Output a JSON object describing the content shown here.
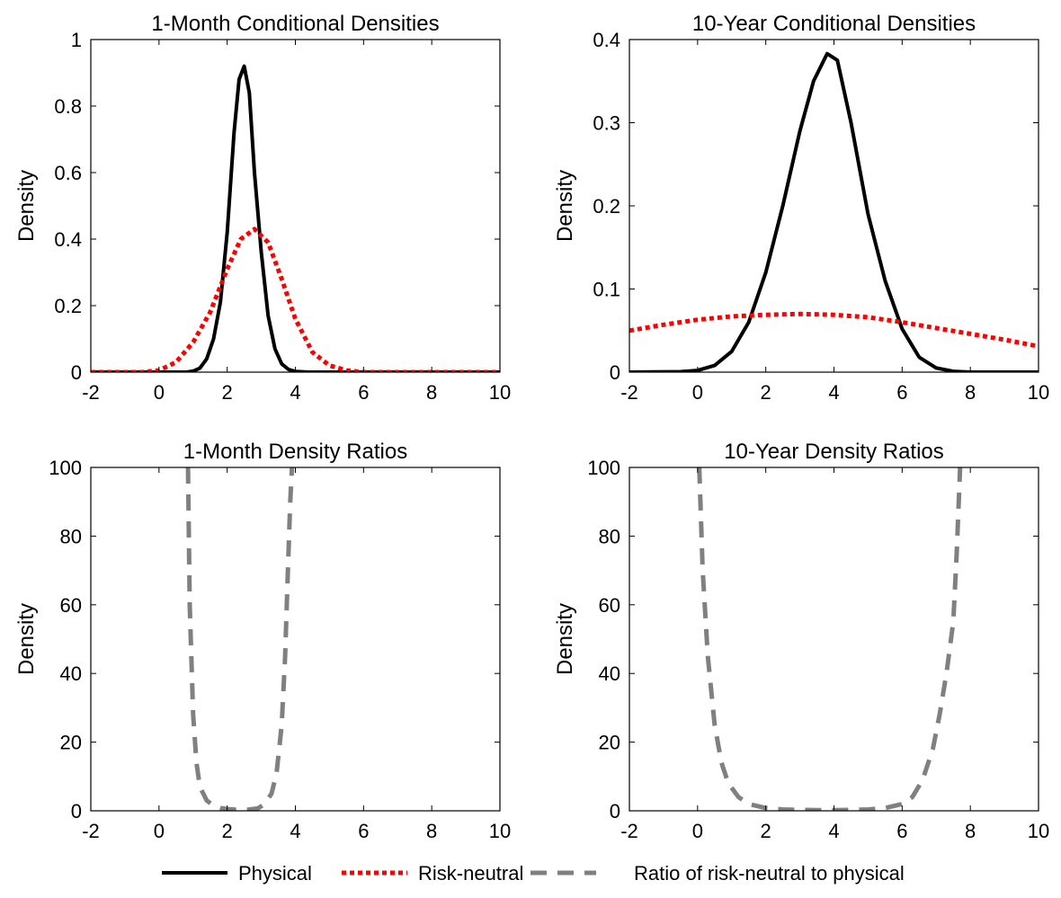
{
  "chart_data": [
    {
      "type": "line",
      "title": "1-Month Conditional Densities",
      "xlabel": "",
      "ylabel": "Density",
      "xlim": [
        -2,
        10
      ],
      "ylim": [
        0,
        1
      ],
      "xticks": [
        -2,
        0,
        2,
        4,
        6,
        8,
        10
      ],
      "xtick_labels": [
        "-2",
        "0",
        "2",
        "4",
        "6",
        "8",
        "10"
      ],
      "yticks": [
        0,
        0.2,
        0.4,
        0.6,
        0.8,
        1
      ],
      "ytick_labels": [
        "0",
        "0.2",
        "0.4",
        "0.6",
        "0.8",
        "1"
      ],
      "series": [
        {
          "name": "Physical",
          "color": "#000000",
          "style": "solid",
          "x": [
            -2,
            0.8,
            1.0,
            1.2,
            1.4,
            1.6,
            1.8,
            2.0,
            2.2,
            2.35,
            2.5,
            2.65,
            2.8,
            3.0,
            3.2,
            3.4,
            3.6,
            3.8,
            4.0,
            4.4,
            10
          ],
          "y": [
            0,
            0,
            0.003,
            0.012,
            0.04,
            0.1,
            0.21,
            0.42,
            0.72,
            0.88,
            0.92,
            0.84,
            0.6,
            0.36,
            0.17,
            0.07,
            0.025,
            0.008,
            0.002,
            0,
            0
          ]
        },
        {
          "name": "Risk-neutral",
          "color": "#ff0000",
          "style": "dotted",
          "x": [
            -2,
            -0.5,
            0,
            0.5,
            1.0,
            1.5,
            2.0,
            2.4,
            2.8,
            3.2,
            3.6,
            4.0,
            4.5,
            5.0,
            5.5,
            6.0,
            10
          ],
          "y": [
            0,
            0,
            0.005,
            0.03,
            0.09,
            0.18,
            0.31,
            0.4,
            0.43,
            0.39,
            0.28,
            0.16,
            0.06,
            0.02,
            0.005,
            0,
            0
          ]
        }
      ]
    },
    {
      "type": "line",
      "title": "10-Year  Conditional Densities",
      "xlabel": "",
      "ylabel": "Density",
      "xlim": [
        -2,
        10
      ],
      "ylim": [
        0,
        0.4
      ],
      "xticks": [
        -2,
        0,
        2,
        4,
        6,
        8,
        10
      ],
      "xtick_labels": [
        "-2",
        "0",
        "2",
        "4",
        "6",
        "8",
        "10"
      ],
      "yticks": [
        0,
        0.1,
        0.2,
        0.3,
        0.4
      ],
      "ytick_labels": [
        "0",
        "0.1",
        "0.2",
        "0.3",
        "0.4"
      ],
      "series": [
        {
          "name": "Physical",
          "color": "#000000",
          "style": "solid",
          "x": [
            -2,
            -0.5,
            0,
            0.5,
            1.0,
            1.5,
            2.0,
            2.5,
            3.0,
            3.4,
            3.8,
            4.1,
            4.5,
            5.0,
            5.5,
            6.0,
            6.5,
            7.0,
            7.5,
            8,
            10
          ],
          "y": [
            0,
            0.0005,
            0.002,
            0.008,
            0.025,
            0.06,
            0.12,
            0.2,
            0.29,
            0.35,
            0.383,
            0.375,
            0.3,
            0.19,
            0.11,
            0.052,
            0.018,
            0.005,
            0.001,
            0,
            0
          ]
        },
        {
          "name": "Risk-neutral",
          "color": "#ff0000",
          "style": "dotted",
          "x": [
            -2,
            -1,
            0,
            1,
            2,
            3,
            4,
            5,
            6,
            7,
            8,
            9,
            10
          ],
          "y": [
            0.05,
            0.057,
            0.063,
            0.067,
            0.069,
            0.07,
            0.069,
            0.066,
            0.06,
            0.053,
            0.046,
            0.039,
            0.031
          ]
        }
      ]
    },
    {
      "type": "line",
      "title": "1-Month Density Ratios",
      "xlabel": "",
      "ylabel": "Density",
      "xlim": [
        -2,
        10
      ],
      "ylim": [
        0,
        100
      ],
      "xticks": [
        -2,
        0,
        2,
        4,
        6,
        8,
        10
      ],
      "xtick_labels": [
        "-2",
        "0",
        "2",
        "4",
        "6",
        "8",
        "10"
      ],
      "yticks": [
        0,
        20,
        40,
        60,
        80,
        100
      ],
      "ytick_labels": [
        "0",
        "20",
        "40",
        "60",
        "80",
        "100"
      ],
      "series": [
        {
          "name": "Ratio of risk-neutral to physical",
          "color": "#808080",
          "style": "dashed",
          "x": [
            0.85,
            0.9,
            1.0,
            1.1,
            1.2,
            1.4,
            1.6,
            1.8,
            2.0,
            2.3,
            2.6,
            2.9,
            3.1,
            3.3,
            3.45,
            3.6,
            3.7,
            3.78,
            3.85,
            3.9
          ],
          "y": [
            100,
            60,
            28,
            14,
            7,
            3,
            1.5,
            0.8,
            0.5,
            0.3,
            0.35,
            0.7,
            2,
            5,
            11,
            25,
            45,
            70,
            90,
            100
          ]
        }
      ]
    },
    {
      "type": "line",
      "title": "10-Year Density Ratios",
      "xlabel": "",
      "ylabel": "Density",
      "xlim": [
        -2,
        10
      ],
      "ylim": [
        0,
        100
      ],
      "xticks": [
        -2,
        0,
        2,
        4,
        6,
        8,
        10
      ],
      "xtick_labels": [
        "-2",
        "0",
        "2",
        "4",
        "6",
        "8",
        "10"
      ],
      "yticks": [
        0,
        20,
        40,
        60,
        80,
        100
      ],
      "ytick_labels": [
        "0",
        "20",
        "40",
        "60",
        "80",
        "100"
      ],
      "series": [
        {
          "name": "Ratio of risk-neutral to physical",
          "color": "#808080",
          "style": "dashed",
          "x": [
            0.05,
            0.15,
            0.3,
            0.5,
            0.7,
            0.9,
            1.2,
            1.5,
            2.0,
            2.5,
            3.0,
            3.5,
            4.0,
            4.5,
            5.0,
            5.5,
            6.0,
            6.3,
            6.6,
            6.9,
            7.1,
            7.3,
            7.5,
            7.6,
            7.7
          ],
          "y": [
            100,
            70,
            45,
            25,
            14,
            8,
            4,
            2,
            0.8,
            0.4,
            0.25,
            0.2,
            0.2,
            0.25,
            0.4,
            0.8,
            2,
            4,
            9,
            18,
            28,
            40,
            55,
            75,
            100
          ]
        }
      ]
    }
  ],
  "legend": {
    "placement": "bottom-center",
    "entries": [
      {
        "label": "Physical",
        "color": "#000000",
        "style": "solid"
      },
      {
        "label": "Risk-neutral",
        "color": "#ff0000",
        "style": "dotted"
      },
      {
        "label": "Ratio of risk-neutral to physical",
        "color": "#808080",
        "style": "dashed"
      }
    ]
  }
}
